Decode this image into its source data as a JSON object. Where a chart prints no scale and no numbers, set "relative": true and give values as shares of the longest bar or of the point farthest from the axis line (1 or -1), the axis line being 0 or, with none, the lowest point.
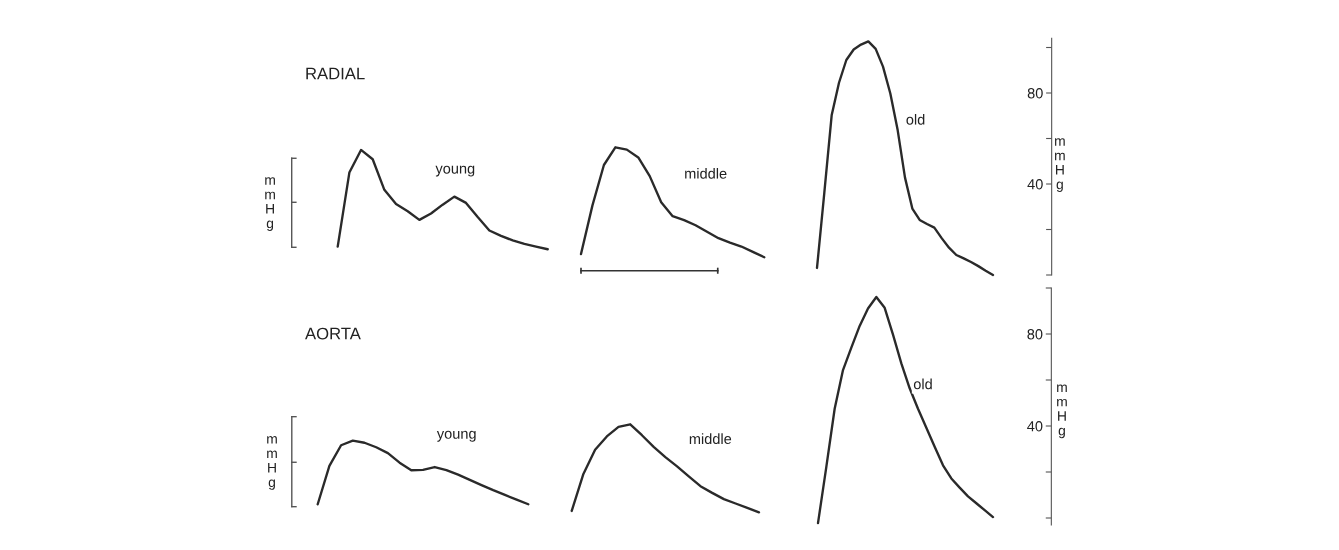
{
  "chart_data": [
    {
      "type": "line",
      "title": "RADIAL",
      "ylabel": "mmHg",
      "relative": true,
      "tick_labels": false,
      "grid": false,
      "marker": "none",
      "line_style": "solid",
      "categories": [
        null,
        null,
        null,
        null,
        null,
        null,
        null,
        null,
        null,
        null,
        null,
        null,
        null,
        null,
        null,
        null,
        null,
        null,
        null
      ],
      "series": [
        {
          "name": "young",
          "color": "#2a2a2a",
          "values": [
            0.027,
            0.772,
            1.0,
            0.906,
            0.598,
            0.456,
            0.383,
            0.296,
            0.36,
            0.449,
            0.53,
            0.467,
            0.324,
            0.189,
            0.135,
            0.089,
            0.054,
            0.027,
            0.0
          ]
        }
      ]
    },
    {
      "type": "line",
      "relative": true,
      "tick_labels": false,
      "grid": false,
      "marker": "none",
      "line_style": "solid",
      "categories": [
        null,
        null,
        null,
        null,
        null,
        null,
        null,
        null,
        null,
        null,
        null,
        null,
        null,
        null,
        null,
        null,
        null
      ],
      "series": [
        {
          "name": "middle",
          "color": "#2a2a2a",
          "values": [
            0.03,
            0.472,
            0.839,
            1.0,
            0.979,
            0.908,
            0.738,
            0.501,
            0.374,
            0.338,
            0.291,
            0.233,
            0.174,
            0.133,
            0.098,
            0.049,
            0.0
          ]
        }
      ]
    },
    {
      "type": "line",
      "ylabel": "mmHg",
      "ylim": [
        0,
        104
      ],
      "yticks": [
        {
          "value": 0,
          "label": null
        },
        {
          "value": 20,
          "label": null
        },
        40,
        {
          "value": 60,
          "label": null
        },
        80,
        {
          "value": 100,
          "label": null
        }
      ],
      "tick_labels": "y",
      "grid": false,
      "marker": "none",
      "line_style": "solid",
      "categories": [
        null,
        null,
        null,
        null,
        null,
        null,
        null,
        null,
        null,
        null,
        null,
        null,
        null,
        null,
        null,
        null,
        null,
        null,
        null,
        null,
        null,
        null,
        null,
        null,
        null,
        null,
        null,
        null,
        null,
        null,
        null,
        null,
        null
      ],
      "series": [
        {
          "name": "old",
          "color": "#2a2a2a",
          "values": [
            3.1,
            36.2,
            70.2,
            84.5,
            94.5,
            99.1,
            101.3,
            102.7,
            99.4,
            91.6,
            79.8,
            63.7,
            42.8,
            29.2,
            24.2,
            22.4,
            20.8,
            16.2,
            12.0,
            8.8,
            7.3,
            5.7,
            3.9,
            1.9,
            0,
            null,
            null,
            null,
            null,
            null,
            null,
            null,
            null
          ]
        }
      ]
    },
    {
      "type": "line",
      "title": "AORTA",
      "ylabel": "mmHg",
      "relative": true,
      "tick_labels": false,
      "grid": false,
      "marker": "none",
      "line_style": "solid",
      "categories": [
        null,
        null,
        null,
        null,
        null,
        null,
        null,
        null,
        null,
        null,
        null,
        null,
        null,
        null,
        null,
        null,
        null,
        null,
        null
      ],
      "series": [
        {
          "name": "young",
          "color": "#2a2a2a",
          "values": [
            0.0,
            0.604,
            0.928,
            1.0,
            0.967,
            0.896,
            0.804,
            0.654,
            0.535,
            0.541,
            0.585,
            0.537,
            0.465,
            0.383,
            0.3,
            0.221,
            0.147,
            0.073,
            0.0
          ]
        }
      ]
    },
    {
      "type": "line",
      "relative": true,
      "tick_labels": false,
      "grid": false,
      "marker": "none",
      "line_style": "solid",
      "categories": [
        null,
        null,
        null,
        null,
        null,
        null,
        null,
        null,
        null,
        null,
        null,
        null,
        null,
        null,
        null,
        null,
        null
      ],
      "series": [
        {
          "name": "middle",
          "color": "#2a2a2a",
          "values": [
            0.015,
            0.436,
            0.71,
            0.862,
            0.971,
            1.0,
            0.876,
            0.743,
            0.627,
            0.522,
            0.409,
            0.297,
            0.221,
            0.15,
            0.1,
            0.05,
            0.0
          ]
        }
      ]
    },
    {
      "type": "line",
      "ylabel": "mmHg",
      "ylim": [
        -3,
        100
      ],
      "yticks": [
        {
          "value": 0,
          "label": null
        },
        {
          "value": 20,
          "label": null
        },
        40,
        {
          "value": 60,
          "label": null
        },
        80,
        {
          "value": 100,
          "label": null
        }
      ],
      "tick_labels": "y",
      "grid": false,
      "marker": "none",
      "line_style": "solid",
      "categories": [
        null,
        null,
        null,
        null,
        null,
        null,
        null,
        null,
        null,
        null,
        null,
        null,
        null,
        null,
        null,
        null,
        null,
        null,
        null,
        null,
        null,
        null,
        null,
        null,
        null,
        null,
        null,
        null,
        null
      ],
      "series": [
        {
          "name": "old",
          "color": "#2a2a2a",
          "values": [
            -2.2,
            22.2,
            47.5,
            64.3,
            74.1,
            83.5,
            91.1,
            96.1,
            91.4,
            79.7,
            67.2,
            56.4,
            47.5,
            39.2,
            31.0,
            22.9,
            17.2,
            13.2,
            9.4,
            6.4,
            3.4,
            0.4,
            null,
            null,
            null,
            null,
            null,
            null,
            null
          ]
        }
      ]
    }
  ]
}
